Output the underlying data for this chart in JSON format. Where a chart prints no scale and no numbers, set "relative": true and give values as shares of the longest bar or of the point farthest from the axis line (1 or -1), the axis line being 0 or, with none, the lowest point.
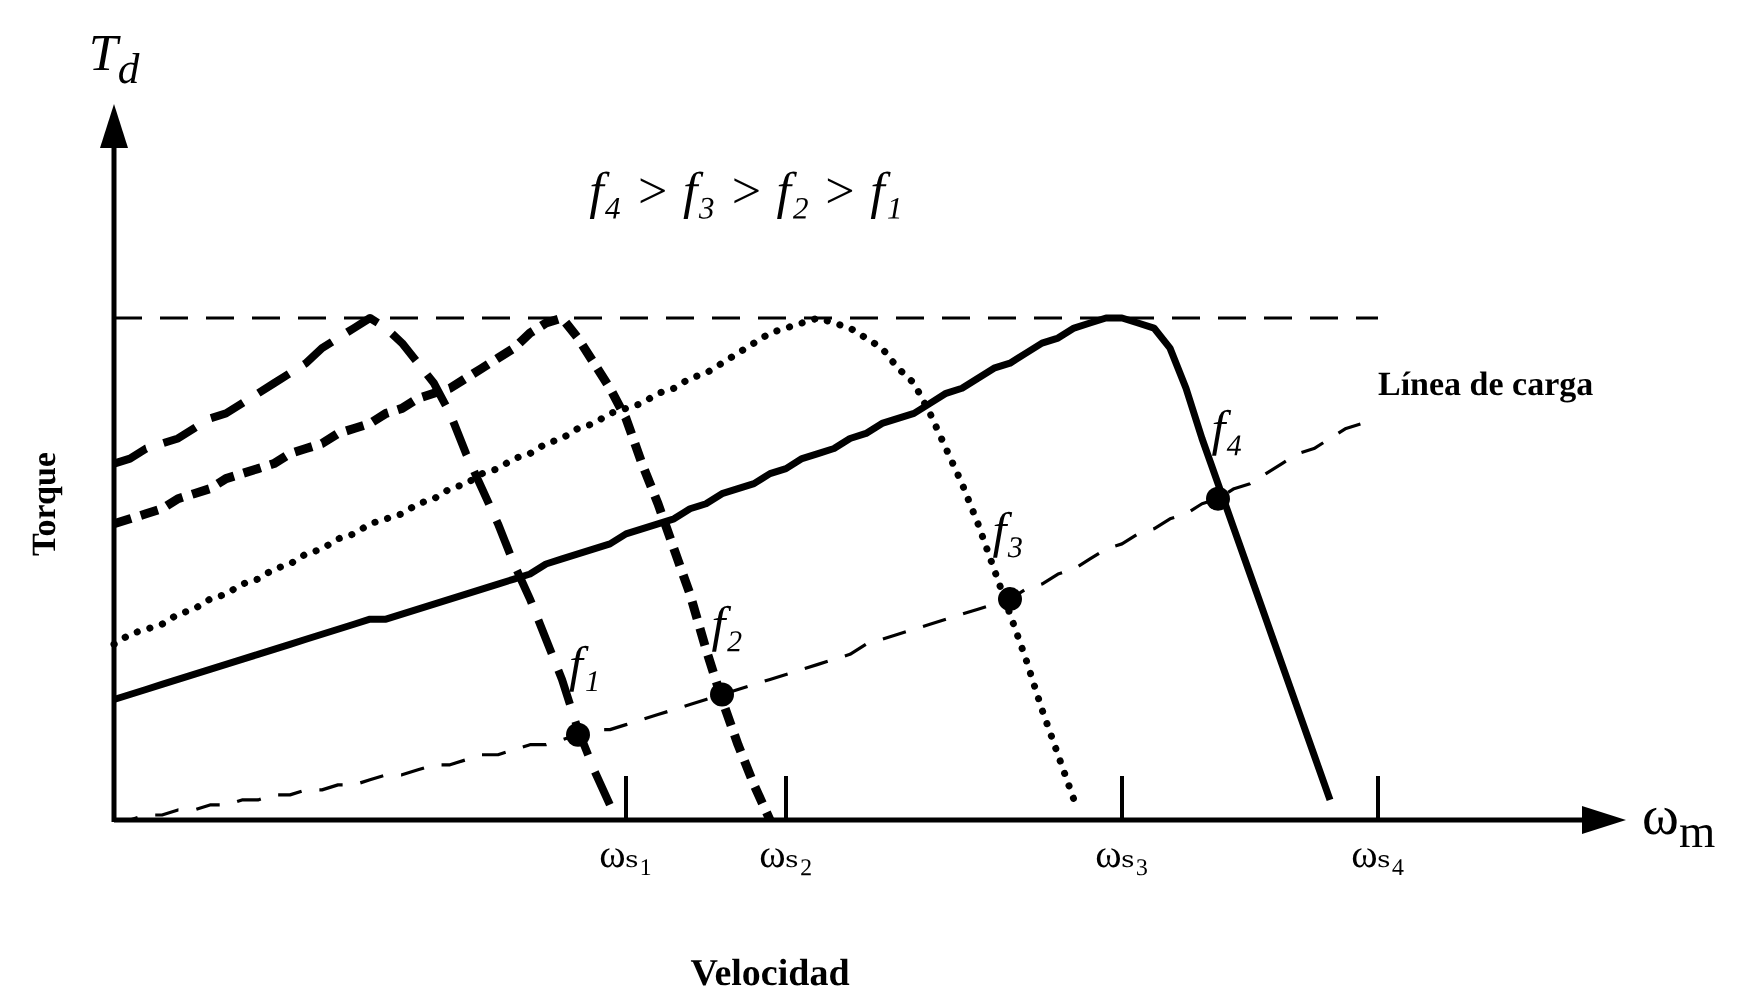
{
  "chart_data": {
    "type": "line",
    "title": "f₄ > f₃ > f₂ > f₁",
    "xlabel": "Velocidad",
    "ylabel": "Torque",
    "annotations": [
      "T$_{d}$",
      "ω$_{m}$"
    ],
    "relative": true,
    "tick_labels": "x",
    "categories": [
      null,
      null,
      null,
      null,
      null,
      null,
      null,
      null,
      null,
      null,
      null,
      null,
      null,
      null,
      null,
      null,
      null,
      null,
      null,
      null,
      null,
      null,
      null,
      null,
      null,
      null,
      null,
      null,
      null,
      null,
      null,
      null,
      "ωₛ₁",
      null,
      null,
      null,
      null,
      null,
      null,
      null,
      null,
      null,
      "ωₛ₂",
      null,
      null,
      null,
      null,
      null,
      null,
      null,
      null,
      null,
      null,
      null,
      null,
      null,
      null,
      null,
      null,
      null,
      null,
      null,
      null,
      "ωₛ₃",
      null,
      null,
      null,
      null,
      null,
      null,
      null,
      null,
      null,
      null,
      null,
      null,
      null,
      null,
      null,
      "ωₛ₄"
    ],
    "series": [
      {
        "name": "f₁",
        "color": "#000000",
        "line_style": "dashed",
        "values": [
          0.71,
          0.72,
          0.74,
          0.75,
          0.76,
          0.78,
          0.8,
          0.81,
          0.83,
          0.85,
          0.87,
          0.89,
          0.91,
          0.94,
          0.96,
          0.98,
          1,
          0.98,
          0.95,
          0.91,
          0.87,
          0.81,
          0.73,
          0.66,
          0.59,
          0.51,
          0.44,
          0.36,
          0.28,
          0.18,
          0.1,
          0.03,
          null,
          null,
          null,
          null,
          null,
          null,
          null,
          null,
          null,
          null,
          null,
          null,
          null,
          null,
          null,
          null,
          null,
          null,
          null,
          null,
          null,
          null,
          null,
          null,
          null,
          null,
          null,
          null,
          null,
          null,
          null,
          null,
          null,
          null,
          null,
          null,
          null,
          null,
          null,
          null,
          null,
          null,
          null,
          null,
          null,
          null,
          null,
          null
        ]
      },
      {
        "name": "f₂",
        "color": "#000000",
        "line_style": "dashed",
        "values": [
          0.59,
          0.6,
          0.61,
          0.62,
          0.64,
          0.65,
          0.66,
          0.68,
          0.69,
          0.7,
          0.71,
          0.73,
          0.74,
          0.75,
          0.77,
          0.78,
          0.79,
          0.81,
          0.82,
          0.84,
          0.85,
          0.86,
          0.88,
          0.9,
          0.92,
          0.94,
          0.97,
          0.99,
          1,
          0.96,
          0.91,
          0.86,
          0.8,
          0.71,
          0.63,
          0.54,
          0.45,
          0.34,
          0.24,
          0.15,
          0.07,
          0,
          null,
          null,
          null,
          null,
          null,
          null,
          null,
          null,
          null,
          null,
          null,
          null,
          null,
          null,
          null,
          null,
          null,
          null,
          null,
          null,
          null,
          null,
          null,
          null,
          null,
          null,
          null,
          null,
          null,
          null,
          null,
          null,
          null,
          null,
          null,
          null,
          null,
          null
        ]
      },
      {
        "name": "f₃",
        "color": "#000000",
        "line_style": "dotted",
        "values": [
          0.35,
          0.37,
          0.38,
          0.39,
          0.41,
          0.42,
          0.44,
          0.45,
          0.47,
          0.48,
          0.5,
          0.51,
          0.53,
          0.54,
          0.56,
          0.57,
          0.59,
          0.6,
          0.61,
          0.63,
          0.64,
          0.66,
          0.67,
          0.69,
          0.7,
          0.72,
          0.73,
          0.75,
          0.76,
          0.78,
          0.79,
          0.81,
          0.82,
          0.83,
          0.85,
          0.86,
          0.88,
          0.89,
          0.91,
          0.93,
          0.95,
          0.97,
          0.98,
          0.99,
          1,
          0.99,
          0.98,
          0.96,
          0.94,
          0.9,
          0.87,
          0.81,
          0.74,
          0.67,
          0.59,
          0.5,
          0.41,
          0.32,
          0.22,
          0.13,
          0.04,
          null,
          null,
          null,
          null,
          null,
          null,
          null,
          null,
          null,
          null,
          null,
          null,
          null,
          null,
          null,
          null,
          null,
          null,
          null
        ]
      },
      {
        "name": "f₄",
        "color": "#000000",
        "line_style": "solid",
        "values": [
          0.24,
          0.25,
          0.26,
          0.27,
          0.28,
          0.29,
          0.3,
          0.31,
          0.32,
          0.33,
          0.34,
          0.35,
          0.36,
          0.37,
          0.38,
          0.39,
          0.4,
          0.4,
          0.41,
          0.42,
          0.43,
          0.44,
          0.45,
          0.46,
          0.47,
          0.48,
          0.49,
          0.51,
          0.52,
          0.53,
          0.54,
          0.55,
          0.57,
          0.58,
          0.59,
          0.6,
          0.62,
          0.63,
          0.65,
          0.66,
          0.67,
          0.69,
          0.7,
          0.72,
          0.73,
          0.74,
          0.76,
          0.77,
          0.79,
          0.8,
          0.81,
          0.83,
          0.85,
          0.86,
          0.88,
          0.9,
          0.91,
          0.93,
          0.95,
          0.96,
          0.98,
          0.99,
          1,
          1,
          0.99,
          0.98,
          0.94,
          0.86,
          0.76,
          0.67,
          0.58,
          0.49,
          0.4,
          0.31,
          0.22,
          0.13,
          0.04,
          null,
          null,
          null
        ]
      },
      {
        "name": "Línea de carga",
        "color": "#000000",
        "line_style": "dashed",
        "values": [
          0,
          0,
          0.01,
          0.01,
          0.02,
          0.02,
          0.03,
          0.03,
          0.04,
          0.04,
          0.05,
          0.05,
          0.06,
          0.06,
          0.07,
          0.07,
          0.08,
          0.09,
          0.09,
          0.1,
          0.11,
          0.11,
          0.12,
          0.13,
          0.13,
          0.14,
          0.15,
          0.15,
          0.16,
          0.17,
          0.18,
          0.18,
          0.19,
          0.2,
          0.21,
          0.22,
          0.23,
          0.24,
          0.25,
          0.26,
          0.27,
          0.28,
          0.29,
          0.3,
          0.31,
          0.32,
          0.33,
          0.35,
          0.36,
          0.37,
          0.38,
          0.39,
          0.4,
          0.41,
          0.42,
          0.43,
          0.44,
          0.46,
          0.47,
          0.49,
          0.5,
          0.52,
          0.54,
          0.55,
          0.57,
          0.58,
          0.6,
          0.61,
          0.63,
          0.64,
          0.66,
          0.67,
          0.69,
          0.71,
          0.73,
          0.74,
          0.76,
          0.78,
          0.79,
          null
        ]
      },
      {
        "type": "scatter",
        "color": "#000000",
        "marker": "circle",
        "values": [
          null,
          null,
          null,
          null,
          null,
          null,
          null,
          null,
          null,
          null,
          null,
          null,
          null,
          null,
          null,
          null,
          null,
          null,
          null,
          null,
          null,
          null,
          null,
          null,
          null,
          null,
          null,
          null,
          null,
          0.17,
          null,
          null,
          null,
          null,
          null,
          null,
          null,
          null,
          0.25,
          null,
          null,
          null,
          null,
          null,
          null,
          null,
          null,
          null,
          null,
          null,
          null,
          null,
          null,
          null,
          null,
          null,
          0.44,
          null,
          null,
          null,
          null,
          null,
          null,
          null,
          null,
          null,
          null,
          null,
          null,
          0.64,
          null,
          null,
          null,
          null,
          null,
          null,
          null,
          null,
          null,
          null
        ]
      }
    ],
    "ref_lines": [
      {
        "axis": "y",
        "value": 1,
        "line_style": "dashed",
        "color": "#000000"
      }
    ]
  }
}
